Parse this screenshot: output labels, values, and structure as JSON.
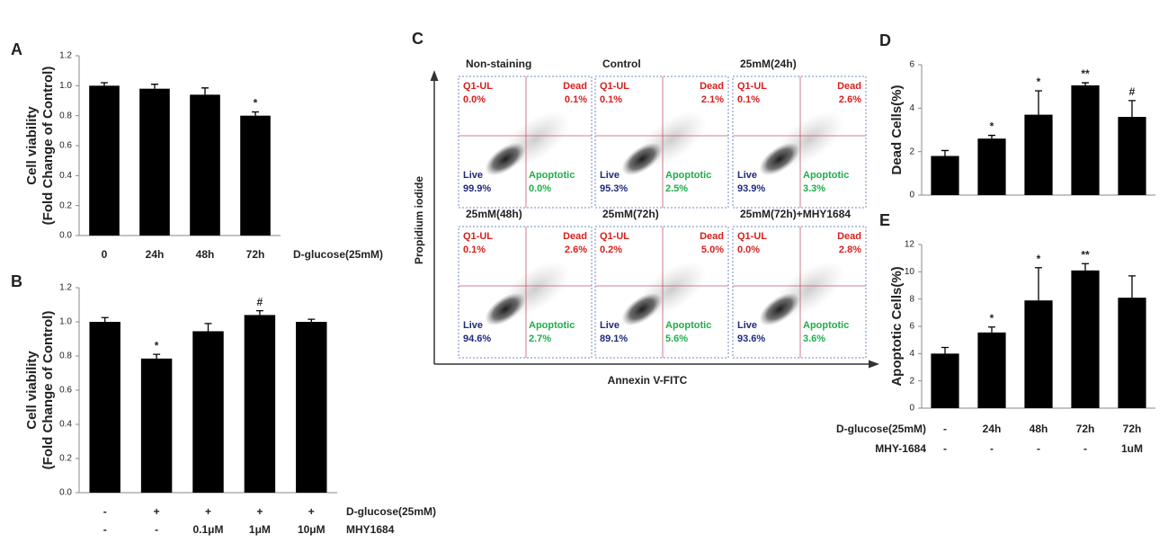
{
  "chart_data": [
    {
      "type": "bar",
      "panel_label": "A",
      "y_label": [
        "Cell viability",
        "(Fold Change of Control)"
      ],
      "color": "#000000",
      "values": [
        1.0,
        0.98,
        0.94,
        0.8
      ],
      "errors": [
        0.02,
        0.03,
        0.045,
        0.025
      ],
      "annotations": [
        null,
        null,
        null,
        "*"
      ],
      "category_rows": [
        {
          "name": "D-glucose(25mM)",
          "labels": [
            "0",
            "24h",
            "48h",
            "72h"
          ]
        }
      ],
      "ylim": [
        0,
        1.2
      ],
      "yticks": [
        {
          "value": 0,
          "label": "0.0"
        },
        0.2,
        0.4,
        0.6,
        0.8,
        {
          "value": 1,
          "label": "1.0"
        },
        1.2
      ]
    },
    {
      "type": "bar",
      "panel_label": "B",
      "y_label": [
        "Cell viability",
        "(Fold Change of Control)"
      ],
      "color": "#000000",
      "values": [
        1.0,
        0.785,
        0.945,
        1.04,
        1.0
      ],
      "errors": [
        0.025,
        0.025,
        0.045,
        0.025,
        0.015
      ],
      "annotations": [
        null,
        "*",
        null,
        "#",
        null
      ],
      "category_rows": [
        {
          "name": "D-glucose(25mM)",
          "labels": [
            "-",
            "+",
            "+",
            "+",
            "+"
          ]
        },
        {
          "name": "MHY1684",
          "labels": [
            "-",
            "-",
            "0.1μM",
            "1μM",
            "10μM"
          ]
        }
      ],
      "ylim": [
        0,
        1.2
      ],
      "yticks": [
        {
          "value": 0,
          "label": "0.0"
        },
        0.2,
        0.4,
        0.6,
        0.8,
        {
          "value": 1,
          "label": "1.0"
        },
        1.2
      ]
    },
    {
      "type": "bar",
      "panel_label": "D",
      "y_label": [
        "Dead Cells(%)"
      ],
      "color": "#000000",
      "values": [
        1.8,
        2.6,
        3.7,
        5.05,
        3.6
      ],
      "errors": [
        0.25,
        0.15,
        1.1,
        0.12,
        0.75
      ],
      "annotations": [
        null,
        "*",
        "*",
        "**",
        "#"
      ],
      "category_rows": [],
      "ylim": [
        0,
        6
      ],
      "yticks": [
        0,
        2,
        4,
        6
      ]
    },
    {
      "type": "bar",
      "panel_label": "E",
      "y_label": [
        "Apoptotic Cells(%)"
      ],
      "color": "#000000",
      "values": [
        4.0,
        5.55,
        7.9,
        10.1,
        8.1
      ],
      "errors": [
        0.45,
        0.4,
        2.4,
        0.5,
        1.6
      ],
      "annotations": [
        null,
        "*",
        "*",
        "**",
        null
      ],
      "category_rows": [
        {
          "name": "D-glucose(25mM)",
          "labels": [
            "-",
            "24h",
            "48h",
            "72h",
            "72h"
          ]
        },
        {
          "name": "MHY-1684",
          "labels": [
            "-",
            "-",
            "-",
            "-",
            "1uM"
          ]
        }
      ],
      "ylim": [
        0,
        12
      ],
      "yticks": [
        0,
        2,
        4,
        6,
        8,
        10,
        12
      ]
    }
  ],
  "flow_cytometry": {
    "panel_label": "C",
    "y_label": "Propidium iodide",
    "x_label": "Annexin V-FITC",
    "plots": [
      {
        "title": "Non-staining",
        "quadrants": {
          "ul": {
            "label": "Q1-UL",
            "value": "0.0%"
          },
          "ur": {
            "label": "Dead",
            "value": "0.1%"
          },
          "ll": {
            "label": "Live",
            "value": "99.9%"
          },
          "lr": {
            "label": "Apoptotic",
            "value": "0.0%"
          }
        }
      },
      {
        "title": "Control",
        "quadrants": {
          "ul": {
            "label": "Q1-UL",
            "value": "0.1%"
          },
          "ur": {
            "label": "Dead",
            "value": "2.1%"
          },
          "ll": {
            "label": "Live",
            "value": "95.3%"
          },
          "lr": {
            "label": "Apoptotic",
            "value": "2.5%"
          }
        }
      },
      {
        "title": "25mM(24h)",
        "quadrants": {
          "ul": {
            "label": "Q1-UL",
            "value": "0.1%"
          },
          "ur": {
            "label": "Dead",
            "value": "2.6%"
          },
          "ll": {
            "label": "Live",
            "value": "93.9%"
          },
          "lr": {
            "label": "Apoptotic",
            "value": "3.3%"
          }
        }
      },
      {
        "title": "25mM(48h)",
        "quadrants": {
          "ul": {
            "label": "Q1-UL",
            "value": "0.1%"
          },
          "ur": {
            "label": "Dead",
            "value": "2.6%"
          },
          "ll": {
            "label": "Live",
            "value": "94.6%"
          },
          "lr": {
            "label": "Apoptotic",
            "value": "2.7%"
          }
        }
      },
      {
        "title": "25mM(72h)",
        "quadrants": {
          "ul": {
            "label": "Q1-UL",
            "value": "0.2%"
          },
          "ur": {
            "label": "Dead",
            "value": "5.0%"
          },
          "ll": {
            "label": "Live",
            "value": "89.1%"
          },
          "lr": {
            "label": "Apoptotic",
            "value": "5.6%"
          }
        }
      },
      {
        "title": "25mM(72h)+MHY1684",
        "quadrants": {
          "ul": {
            "label": "Q1-UL",
            "value": "0.0%"
          },
          "ur": {
            "label": "Dead",
            "value": "2.8%"
          },
          "ll": {
            "label": "Live",
            "value": "93.6%"
          },
          "lr": {
            "label": "Apoptotic",
            "value": "3.6%"
          }
        }
      }
    ]
  }
}
